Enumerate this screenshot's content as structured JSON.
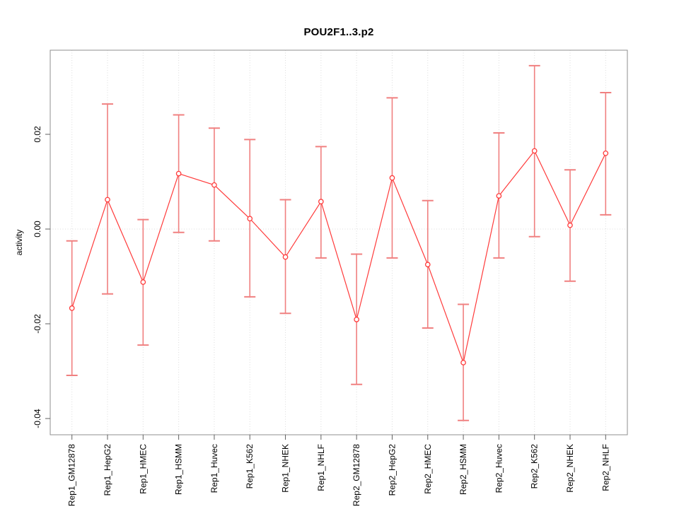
{
  "chart_data": {
    "type": "line",
    "subtype": "points-with-error-bars",
    "title": "POU2F1..3.p2",
    "xlabel": "",
    "ylabel": "activity",
    "categories": [
      "Rep1_GM12878",
      "Rep1_HepG2",
      "Rep1_HMEC",
      "Rep1_HSMM",
      "Rep1_Huvec",
      "Rep1_K562",
      "Rep1_NHEK",
      "Rep1_NHLF",
      "Rep2_GM12878",
      "Rep2_HepG2",
      "Rep2_HMEC",
      "Rep2_HSMM",
      "Rep2_Huvec",
      "Rep2_K562",
      "Rep2_NHEK",
      "Rep2_NHLF"
    ],
    "series": [
      {
        "name": "activity",
        "values": [
          -0.0167,
          0.0062,
          -0.0112,
          0.0117,
          0.0093,
          0.0022,
          -0.0059,
          0.0058,
          -0.0191,
          0.0108,
          -0.0075,
          -0.0282,
          0.007,
          0.0165,
          0.0008,
          0.016
        ],
        "upper": [
          -0.0025,
          0.0264,
          0.002,
          0.0241,
          0.0213,
          0.0189,
          0.0062,
          0.0174,
          -0.0053,
          0.0277,
          0.006,
          -0.0159,
          0.0203,
          0.0345,
          0.0125,
          0.0288
        ],
        "lower": [
          -0.0309,
          -0.0137,
          -0.0245,
          -0.0007,
          -0.0025,
          -0.0143,
          -0.0178,
          -0.0061,
          -0.0328,
          -0.0061,
          -0.0209,
          -0.0404,
          -0.0061,
          -0.0016,
          -0.011,
          0.003
        ]
      }
    ],
    "y_ticks": [
      {
        "value": 0.02,
        "label": "0.02"
      },
      {
        "value": 0.0,
        "label": "0.00"
      },
      {
        "value": -0.02,
        "label": "-0.02"
      },
      {
        "value": -0.04,
        "label": "-0.04"
      }
    ],
    "ylim": [
      -0.04343,
      0.03776
    ],
    "grid": {
      "vertical_per_category": true,
      "zero_line_dotted": true
    },
    "legend_position": "none",
    "colors": {
      "point": "#ff3b3b",
      "line": "#ff3b3b",
      "error_bar": "#f08080",
      "grid": "#dcdcdc",
      "axis_box": "#8f8f8f",
      "tick": "#606060",
      "text": "#000000",
      "background": "#ffffff"
    }
  }
}
